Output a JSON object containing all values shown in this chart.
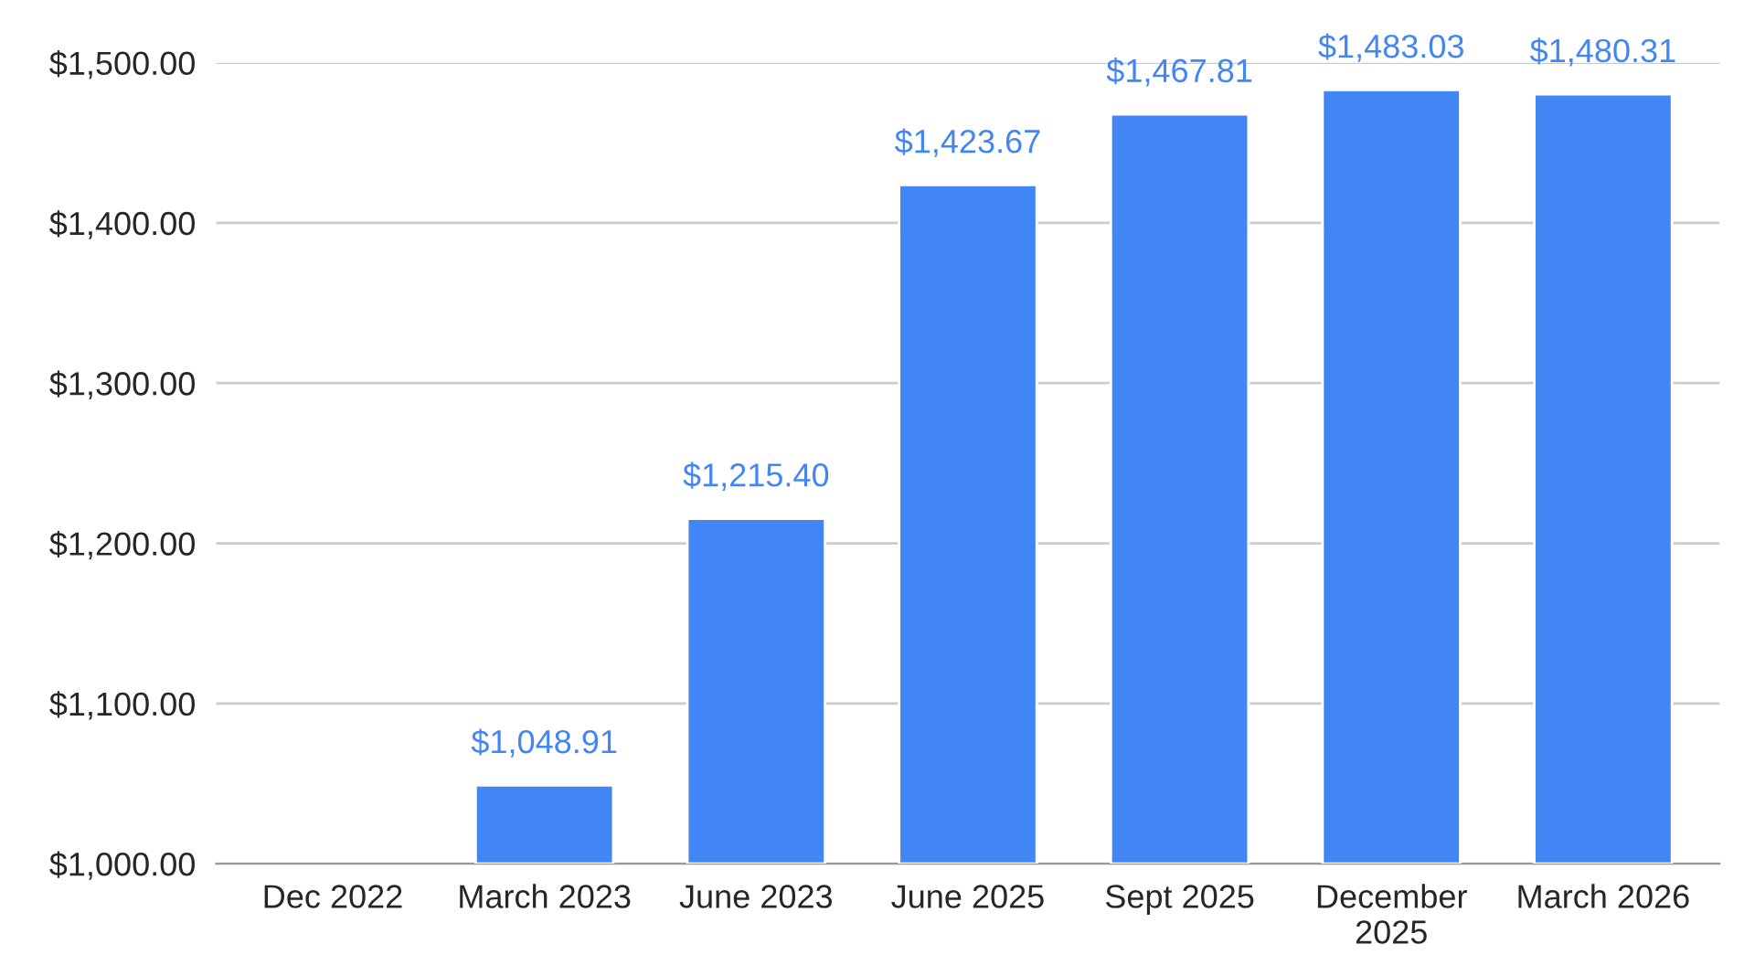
{
  "chart_data": {
    "type": "bar",
    "categories": [
      "Dec 2022",
      "March 2023",
      "June 2023",
      "June 2025",
      "Sept 2025",
      "December\n2025",
      "March 2026"
    ],
    "series": [
      {
        "color": "#4285f4",
        "values": [
          null,
          1048.91,
          1215.4,
          1423.67,
          1467.81,
          1483.03,
          1480.31
        ],
        "value_labels": [
          null,
          "$1,048.91",
          "$1,215.40",
          "$1,423.67",
          "$1,467.81",
          "$1,483.03",
          "$1,480.31"
        ]
      }
    ],
    "ylim": [
      1000,
      1500
    ],
    "yticks": [
      {
        "value": 1000,
        "label": "$1,000.00"
      },
      {
        "value": 1100,
        "label": "$1,100.00"
      },
      {
        "value": 1200,
        "label": "$1,200.00"
      },
      {
        "value": 1300,
        "label": "$1,300.00"
      },
      {
        "value": 1400,
        "label": "$1,400.00"
      },
      {
        "value": 1500,
        "label": "$1,500.00"
      }
    ],
    "grid": "y",
    "legend": false
  }
}
